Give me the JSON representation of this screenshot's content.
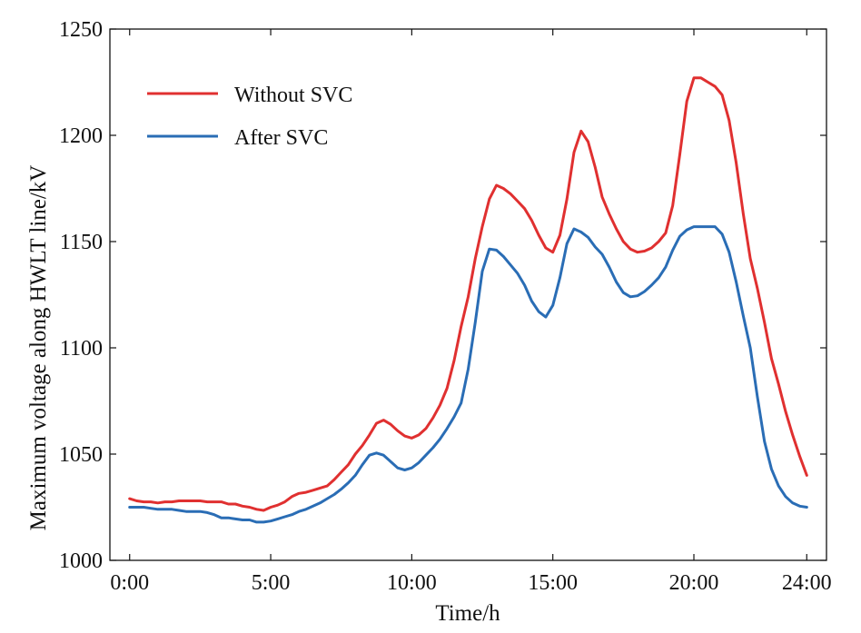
{
  "chart_data": {
    "type": "line",
    "xlabel": "Time/h",
    "ylabel": "Maximum voltage along HWLT line/kV",
    "xlim": [
      -0.7,
      24.7
    ],
    "ylim": [
      1000,
      1250
    ],
    "x_ticks": [
      {
        "value": 0,
        "label": "0:00"
      },
      {
        "value": 5,
        "label": "5:00"
      },
      {
        "value": 10,
        "label": "10:00"
      },
      {
        "value": 15,
        "label": "15:00"
      },
      {
        "value": 20,
        "label": "20:00"
      },
      {
        "value": 24,
        "label": "24:00"
      }
    ],
    "y_ticks": [
      {
        "value": 1000,
        "label": "1000"
      },
      {
        "value": 1050,
        "label": "1050"
      },
      {
        "value": 1100,
        "label": "1100"
      },
      {
        "value": 1150,
        "label": "1150"
      },
      {
        "value": 1200,
        "label": "1200"
      },
      {
        "value": 1250,
        "label": "1250"
      }
    ],
    "legend": "top-left",
    "grid": false,
    "series": [
      {
        "name": "Without SVC",
        "color": "#e03030",
        "points": [
          [
            0.0,
            1029
          ],
          [
            0.25,
            1028
          ],
          [
            0.5,
            1027.5
          ],
          [
            0.75,
            1027.5
          ],
          [
            1.0,
            1027
          ],
          [
            1.25,
            1027.5
          ],
          [
            1.5,
            1027.5
          ],
          [
            1.75,
            1028
          ],
          [
            2.0,
            1028
          ],
          [
            2.25,
            1028
          ],
          [
            2.5,
            1028
          ],
          [
            2.75,
            1027.5
          ],
          [
            3.0,
            1027.5
          ],
          [
            3.25,
            1027.5
          ],
          [
            3.5,
            1026.5
          ],
          [
            3.75,
            1026.5
          ],
          [
            4.0,
            1025.5
          ],
          [
            4.25,
            1025
          ],
          [
            4.5,
            1024
          ],
          [
            4.75,
            1023.5
          ],
          [
            5.0,
            1025
          ],
          [
            5.25,
            1026
          ],
          [
            5.5,
            1027.5
          ],
          [
            5.75,
            1030
          ],
          [
            6.0,
            1031.5
          ],
          [
            6.25,
            1032
          ],
          [
            6.5,
            1033
          ],
          [
            6.75,
            1034
          ],
          [
            7.0,
            1035
          ],
          [
            7.25,
            1038
          ],
          [
            7.5,
            1041.5
          ],
          [
            7.75,
            1045
          ],
          [
            8.0,
            1050
          ],
          [
            8.25,
            1054
          ],
          [
            8.5,
            1059
          ],
          [
            8.75,
            1064.5
          ],
          [
            9.0,
            1066
          ],
          [
            9.25,
            1064
          ],
          [
            9.5,
            1061
          ],
          [
            9.75,
            1058.5
          ],
          [
            10.0,
            1057.5
          ],
          [
            10.25,
            1059
          ],
          [
            10.5,
            1062
          ],
          [
            10.75,
            1067
          ],
          [
            11.0,
            1073
          ],
          [
            11.25,
            1081
          ],
          [
            11.5,
            1094
          ],
          [
            11.75,
            1110
          ],
          [
            12.0,
            1124
          ],
          [
            12.25,
            1142
          ],
          [
            12.5,
            1157
          ],
          [
            12.75,
            1170
          ],
          [
            13.0,
            1176.5
          ],
          [
            13.25,
            1175
          ],
          [
            13.5,
            1172.5
          ],
          [
            13.75,
            1169
          ],
          [
            14.0,
            1165.5
          ],
          [
            14.25,
            1160
          ],
          [
            14.5,
            1153
          ],
          [
            14.75,
            1147
          ],
          [
            15.0,
            1145
          ],
          [
            15.25,
            1153
          ],
          [
            15.5,
            1170
          ],
          [
            15.75,
            1192
          ],
          [
            16.0,
            1202
          ],
          [
            16.25,
            1197
          ],
          [
            16.5,
            1185
          ],
          [
            16.75,
            1171
          ],
          [
            17.0,
            1163
          ],
          [
            17.25,
            1156
          ],
          [
            17.5,
            1150
          ],
          [
            17.75,
            1146.5
          ],
          [
            18.0,
            1145
          ],
          [
            18.25,
            1145.5
          ],
          [
            18.5,
            1147
          ],
          [
            18.75,
            1150
          ],
          [
            19.0,
            1154
          ],
          [
            19.25,
            1167
          ],
          [
            19.5,
            1191
          ],
          [
            19.75,
            1216
          ],
          [
            20.0,
            1227
          ],
          [
            20.25,
            1227
          ],
          [
            20.5,
            1225
          ],
          [
            20.75,
            1223
          ],
          [
            21.0,
            1219
          ],
          [
            21.25,
            1207
          ],
          [
            21.5,
            1187
          ],
          [
            21.75,
            1163
          ],
          [
            22.0,
            1142
          ],
          [
            22.25,
            1128
          ],
          [
            22.5,
            1112
          ],
          [
            22.75,
            1095
          ],
          [
            23.0,
            1083
          ],
          [
            23.25,
            1070
          ],
          [
            23.5,
            1059
          ],
          [
            23.75,
            1049
          ],
          [
            24.0,
            1040
          ]
        ]
      },
      {
        "name": "After SVC",
        "color": "#2a6db5",
        "points": [
          [
            0.0,
            1025
          ],
          [
            0.25,
            1025
          ],
          [
            0.5,
            1025
          ],
          [
            0.75,
            1024.5
          ],
          [
            1.0,
            1024
          ],
          [
            1.25,
            1024
          ],
          [
            1.5,
            1024
          ],
          [
            1.75,
            1023.5
          ],
          [
            2.0,
            1023
          ],
          [
            2.25,
            1023
          ],
          [
            2.5,
            1023
          ],
          [
            2.75,
            1022.5
          ],
          [
            3.0,
            1021.5
          ],
          [
            3.25,
            1020
          ],
          [
            3.5,
            1020
          ],
          [
            3.75,
            1019.5
          ],
          [
            4.0,
            1019
          ],
          [
            4.25,
            1019
          ],
          [
            4.5,
            1018
          ],
          [
            4.75,
            1018
          ],
          [
            5.0,
            1018.5
          ],
          [
            5.25,
            1019.5
          ],
          [
            5.5,
            1020.5
          ],
          [
            5.75,
            1021.5
          ],
          [
            6.0,
            1023
          ],
          [
            6.25,
            1024
          ],
          [
            6.5,
            1025.5
          ],
          [
            6.75,
            1027
          ],
          [
            7.0,
            1029
          ],
          [
            7.25,
            1031
          ],
          [
            7.5,
            1033.5
          ],
          [
            7.75,
            1036.5
          ],
          [
            8.0,
            1040
          ],
          [
            8.25,
            1045
          ],
          [
            8.5,
            1049.5
          ],
          [
            8.75,
            1050.5
          ],
          [
            9.0,
            1049.5
          ],
          [
            9.25,
            1046.5
          ],
          [
            9.5,
            1043.5
          ],
          [
            9.75,
            1042.5
          ],
          [
            10.0,
            1043.5
          ],
          [
            10.25,
            1046
          ],
          [
            10.5,
            1049.5
          ],
          [
            10.75,
            1053
          ],
          [
            11.0,
            1057
          ],
          [
            11.25,
            1062
          ],
          [
            11.5,
            1067.5
          ],
          [
            11.75,
            1074
          ],
          [
            12.0,
            1090
          ],
          [
            12.25,
            1112
          ],
          [
            12.5,
            1136
          ],
          [
            12.75,
            1146.5
          ],
          [
            13.0,
            1146
          ],
          [
            13.25,
            1143
          ],
          [
            13.5,
            1139
          ],
          [
            13.75,
            1135
          ],
          [
            14.0,
            1129.5
          ],
          [
            14.25,
            1122
          ],
          [
            14.5,
            1117
          ],
          [
            14.75,
            1114.5
          ],
          [
            15.0,
            1120
          ],
          [
            15.25,
            1133
          ],
          [
            15.5,
            1149
          ],
          [
            15.75,
            1156
          ],
          [
            16.0,
            1154.5
          ],
          [
            16.25,
            1152
          ],
          [
            16.5,
            1147.5
          ],
          [
            16.75,
            1144
          ],
          [
            17.0,
            1138
          ],
          [
            17.25,
            1131
          ],
          [
            17.5,
            1126
          ],
          [
            17.75,
            1124
          ],
          [
            18.0,
            1124.5
          ],
          [
            18.25,
            1126.5
          ],
          [
            18.5,
            1129.5
          ],
          [
            18.75,
            1133
          ],
          [
            19.0,
            1138
          ],
          [
            19.25,
            1146
          ],
          [
            19.5,
            1152.5
          ],
          [
            19.75,
            1155.5
          ],
          [
            20.0,
            1157
          ],
          [
            20.25,
            1157
          ],
          [
            20.5,
            1157
          ],
          [
            20.75,
            1157
          ],
          [
            21.0,
            1153.5
          ],
          [
            21.25,
            1145
          ],
          [
            21.5,
            1131
          ],
          [
            21.75,
            1115
          ],
          [
            22.0,
            1100
          ],
          [
            22.25,
            1077
          ],
          [
            22.5,
            1056
          ],
          [
            22.75,
            1043
          ],
          [
            23.0,
            1035
          ],
          [
            23.25,
            1030
          ],
          [
            23.5,
            1027
          ],
          [
            23.75,
            1025.5
          ],
          [
            24.0,
            1025
          ]
        ]
      }
    ]
  }
}
